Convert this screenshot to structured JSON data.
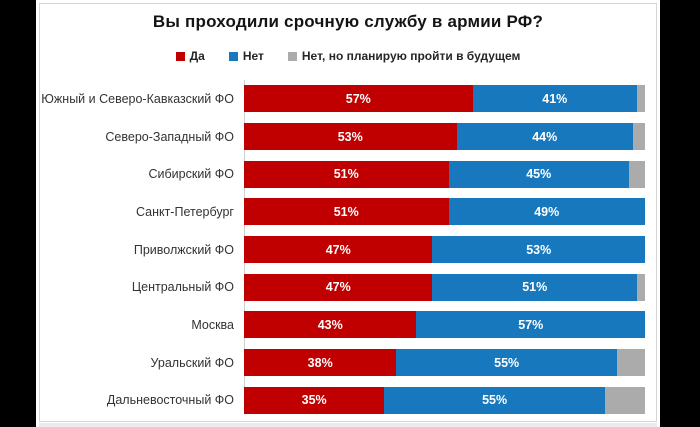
{
  "title": "Вы проходили срочную службу в армии РФ?",
  "colors": {
    "da": "#c00000",
    "net": "#1878be",
    "plan": "#ababab",
    "background": "#000000",
    "panel": "#ffffff"
  },
  "legend": [
    {
      "label": "Да",
      "color": "#c00000"
    },
    {
      "label": "Нет",
      "color": "#1878be"
    },
    {
      "label": "Нет, но планирую пройти в будущем",
      "color": "#ababab"
    }
  ],
  "chart_data": {
    "type": "bar",
    "orientation": "horizontal",
    "stacked": true,
    "title": "Вы проходили срочную службу в армии РФ?",
    "value_suffix": "%",
    "xlim": [
      0,
      100
    ],
    "legend_position": "top",
    "categories": [
      "Южный и Северо-Кавказский ФО",
      "Северо-Западный ФО",
      "Сибирский ФО",
      "Санкт-Петербург",
      "Приволжский ФО",
      "Центральный ФО",
      "Москва",
      "Уральский ФО",
      "Дальневосточный ФО"
    ],
    "series": [
      {
        "name": "Да",
        "color": "#c00000",
        "labeled": true,
        "values": [
          57,
          53,
          51,
          51,
          47,
          47,
          43,
          38,
          35
        ]
      },
      {
        "name": "Нет",
        "color": "#1878be",
        "labeled": true,
        "values": [
          41,
          44,
          45,
          49,
          53,
          51,
          57,
          55,
          55
        ]
      },
      {
        "name": "Нет, но планирую пройти в будущем",
        "color": "#ababab",
        "labeled": false,
        "values": [
          2,
          3,
          4,
          0,
          0,
          2,
          0,
          7,
          10
        ]
      }
    ]
  }
}
